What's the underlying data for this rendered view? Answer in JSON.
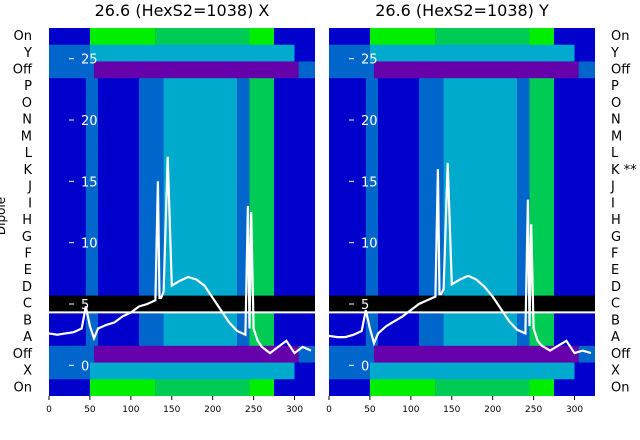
{
  "chart_data": {
    "type": "heatmap",
    "ylabel": "Dipole",
    "row_labels_left": [
      "On",
      "Y",
      "Off",
      "P",
      "O",
      "N",
      "M",
      "L",
      "K",
      "J",
      "I",
      "H",
      "G",
      "F",
      "E",
      "D",
      "C",
      "B",
      "A",
      "Off",
      "X",
      "On"
    ],
    "row_labels_right": [
      "On",
      "Y",
      "Off",
      "P",
      "O",
      "N",
      "M",
      "L",
      "K **",
      "J",
      "I",
      "H",
      "G",
      "F",
      "E",
      "D",
      "C",
      "B",
      "A",
      "Off",
      "X",
      "On"
    ],
    "x_ticks": [
      0,
      50,
      100,
      150,
      200,
      250,
      300
    ],
    "xlim": [
      0,
      325
    ],
    "y_ticks": [
      0,
      5,
      10,
      15,
      20,
      25
    ],
    "ylim": [
      -2.5,
      27.5
    ],
    "panels": [
      {
        "title": "26.6 (HexS2=1038) X",
        "overlay_curve": {
          "x": [
            0,
            10,
            20,
            30,
            40,
            45,
            50,
            55,
            60,
            70,
            80,
            90,
            100,
            110,
            120,
            130,
            133,
            135,
            137,
            140,
            145,
            150,
            160,
            170,
            180,
            190,
            200,
            210,
            220,
            230,
            240,
            243,
            245,
            247,
            250,
            255,
            260,
            270,
            280,
            290,
            300,
            310,
            320
          ],
          "y": [
            2.6,
            2.5,
            2.6,
            2.7,
            3.0,
            4.8,
            3.2,
            2.2,
            3.0,
            3.3,
            3.5,
            4.0,
            4.3,
            4.8,
            5.0,
            5.3,
            15.0,
            5.5,
            5.5,
            6.0,
            17.0,
            6.5,
            6.9,
            7.2,
            7.0,
            6.5,
            5.5,
            4.5,
            3.5,
            2.8,
            2.5,
            13.0,
            3.0,
            12.5,
            3.0,
            2.0,
            1.5,
            1.0,
            1.5,
            2.0,
            1.0,
            1.5,
            1.2
          ]
        }
      },
      {
        "title": "26.6 (HexS2=1038) Y",
        "overlay_curve": {
          "x": [
            0,
            10,
            20,
            30,
            40,
            45,
            50,
            55,
            60,
            70,
            80,
            90,
            100,
            110,
            120,
            130,
            133,
            135,
            137,
            140,
            145,
            150,
            160,
            170,
            180,
            190,
            200,
            210,
            220,
            230,
            240,
            243,
            245,
            247,
            250,
            255,
            260,
            270,
            280,
            290,
            300,
            310,
            320
          ],
          "y": [
            2.4,
            2.3,
            2.3,
            2.5,
            2.8,
            4.5,
            3.0,
            1.8,
            2.6,
            3.2,
            3.6,
            4.0,
            4.5,
            5.0,
            5.3,
            5.6,
            16.0,
            5.8,
            5.8,
            6.2,
            16.5,
            6.6,
            7.0,
            7.3,
            7.0,
            6.4,
            5.6,
            4.6,
            3.6,
            2.9,
            2.6,
            13.5,
            3.2,
            11.5,
            3.0,
            2.0,
            1.6,
            1.2,
            1.6,
            2.0,
            1.0,
            1.2,
            1.0
          ]
        }
      }
    ],
    "colormap": [
      "#0000cc",
      "#0066cc",
      "#00aacc",
      "#00cc55",
      "#00ee00",
      "#6600aa",
      "#000000"
    ]
  }
}
